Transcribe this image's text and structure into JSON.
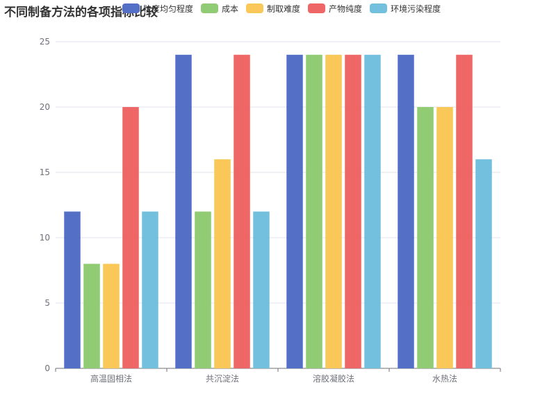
{
  "chart_data": {
    "type": "bar",
    "title": "不同制备方法的各项指标比较",
    "xlabel": "",
    "ylabel": "",
    "categories": [
      "高温固相法",
      "共沉淀法",
      "溶胶凝胶法",
      "水热法"
    ],
    "series": [
      {
        "name": "粒度均匀程度",
        "color": "#5470C6",
        "values": [
          12,
          24,
          24,
          24
        ]
      },
      {
        "name": "成本",
        "color": "#91CC75",
        "values": [
          8,
          12,
          24,
          20
        ]
      },
      {
        "name": "制取难度",
        "color": "#FAC858",
        "values": [
          8,
          16,
          24,
          20
        ]
      },
      {
        "name": "产物纯度",
        "color": "#EE6666",
        "values": [
          20,
          24,
          24,
          24
        ]
      },
      {
        "name": "环境污染程度",
        "color": "#73C0DE",
        "values": [
          12,
          12,
          24,
          16
        ]
      }
    ],
    "ylim": [
      0,
      25
    ],
    "yticks": [
      0,
      5,
      10,
      15,
      20,
      25
    ],
    "grid": true,
    "legend_position": "top"
  }
}
